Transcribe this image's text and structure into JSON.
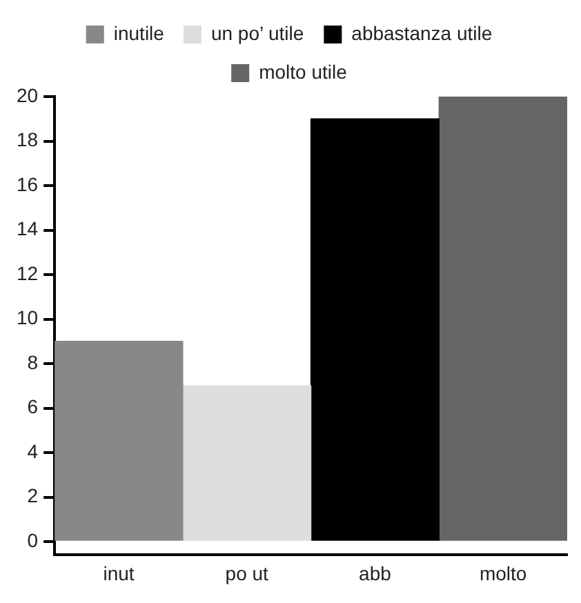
{
  "chart_data": {
    "type": "bar",
    "categories": [
      "inut",
      "po ut",
      "abb",
      "molto"
    ],
    "series": [
      {
        "name": "inutile",
        "color": "#888888",
        "values": [
          9,
          null,
          null,
          null
        ]
      },
      {
        "name": "un po’ utile",
        "color": "#dddddd",
        "values": [
          null,
          7,
          null,
          null
        ]
      },
      {
        "name": "abbastanza utile",
        "color": "#000000",
        "values": [
          null,
          null,
          19,
          null
        ]
      },
      {
        "name": "molto utile",
        "color": "#666666",
        "values": [
          null,
          null,
          null,
          20
        ]
      }
    ],
    "ylim": [
      -0.6,
      20
    ],
    "yticks": [
      0,
      2,
      4,
      6,
      8,
      10,
      12,
      14,
      16,
      18,
      20
    ],
    "grid": false,
    "legend": "top"
  }
}
